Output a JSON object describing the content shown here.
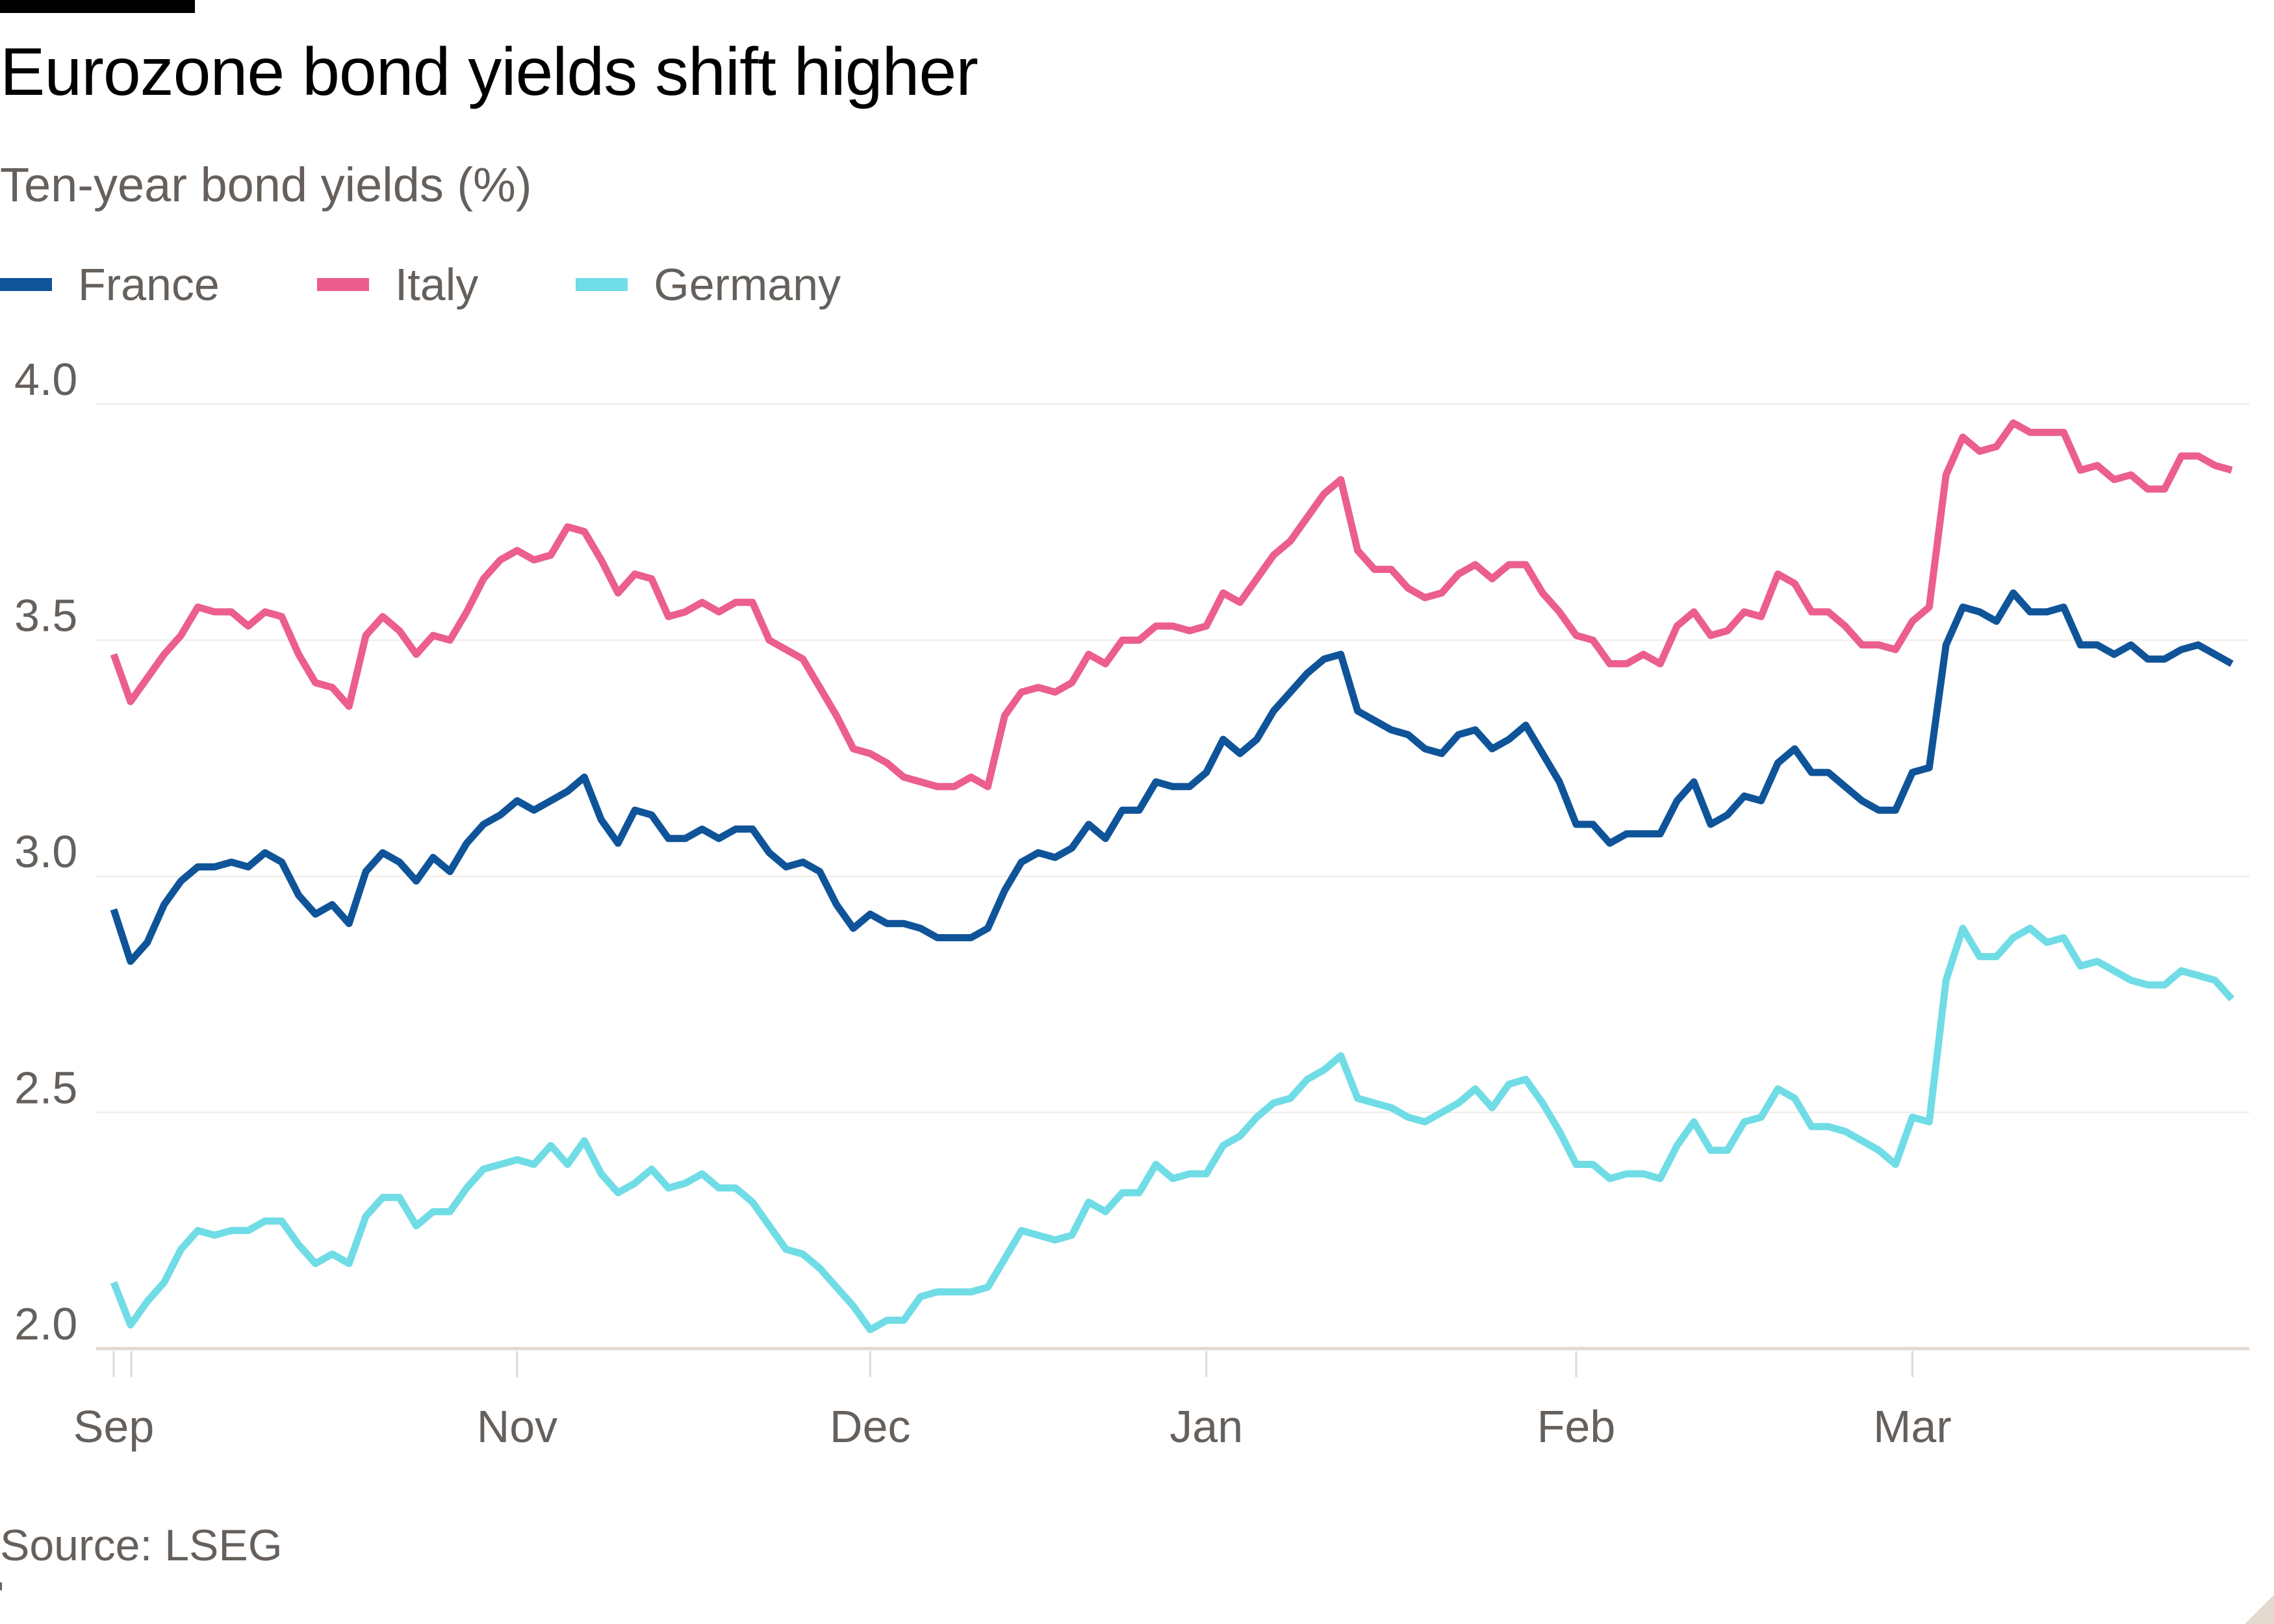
{
  "chart_data": {
    "type": "line",
    "title": "Eurozone bond yields shift higher",
    "subtitle": "Ten-year bond yields (%)",
    "source": "Source: LSEG",
    "ylim": [
      2.0,
      4.0
    ],
    "yticks": [
      "4.0",
      "3.5",
      "3.0",
      "2.5",
      "2.0"
    ],
    "grid": true,
    "legend_placement": "top-left",
    "xticks": [
      {
        "label": "Sep",
        "date": "2024-09-30"
      },
      {
        "label": "Nov",
        "date": "2024-11-01"
      },
      {
        "label": "Dec",
        "date": "2024-12-02"
      },
      {
        "label": "Jan",
        "date": "2025-01-02"
      },
      {
        "label": "Feb",
        "date": "2025-02-03"
      },
      {
        "label": "Mar",
        "date": "2025-03-03"
      }
    ],
    "x": [
      "2024-09-30",
      "2024-10-01",
      "2024-10-02",
      "2024-10-03",
      "2024-10-04",
      "2024-10-07",
      "2024-10-08",
      "2024-10-09",
      "2024-10-10",
      "2024-10-11",
      "2024-10-14",
      "2024-10-15",
      "2024-10-16",
      "2024-10-17",
      "2024-10-18",
      "2024-10-21",
      "2024-10-22",
      "2024-10-23",
      "2024-10-24",
      "2024-10-25",
      "2024-10-28",
      "2024-10-29",
      "2024-10-30",
      "2024-10-31",
      "2024-11-01",
      "2024-11-04",
      "2024-11-05",
      "2024-11-06",
      "2024-11-07",
      "2024-11-08",
      "2024-11-11",
      "2024-11-12",
      "2024-11-13",
      "2024-11-14",
      "2024-11-15",
      "2024-11-18",
      "2024-11-19",
      "2024-11-20",
      "2024-11-21",
      "2024-11-22",
      "2024-11-25",
      "2024-11-26",
      "2024-11-27",
      "2024-11-28",
      "2024-11-29",
      "2024-12-02",
      "2024-12-03",
      "2024-12-04",
      "2024-12-05",
      "2024-12-06",
      "2024-12-09",
      "2024-12-10",
      "2024-12-11",
      "2024-12-12",
      "2024-12-13",
      "2024-12-16",
      "2024-12-17",
      "2024-12-18",
      "2024-12-19",
      "2024-12-20",
      "2024-12-23",
      "2024-12-24",
      "2024-12-27",
      "2024-12-30",
      "2024-12-31",
      "2025-01-02",
      "2025-01-03",
      "2025-01-06",
      "2025-01-07",
      "2025-01-08",
      "2025-01-09",
      "2025-01-10",
      "2025-01-13",
      "2025-01-14",
      "2025-01-15",
      "2025-01-16",
      "2025-01-17",
      "2025-01-20",
      "2025-01-21",
      "2025-01-22",
      "2025-01-23",
      "2025-01-24",
      "2025-01-27",
      "2025-01-28",
      "2025-01-29",
      "2025-01-30",
      "2025-01-31",
      "2025-02-03",
      "2025-02-04",
      "2025-02-05",
      "2025-02-06",
      "2025-02-07",
      "2025-02-10",
      "2025-02-11",
      "2025-02-12",
      "2025-02-13",
      "2025-02-14",
      "2025-02-17",
      "2025-02-18",
      "2025-02-19",
      "2025-02-20",
      "2025-02-21",
      "2025-02-24",
      "2025-02-25",
      "2025-02-26",
      "2025-02-27",
      "2025-02-28",
      "2025-03-03",
      "2025-03-04",
      "2025-03-05",
      "2025-03-06",
      "2025-03-07",
      "2025-03-10",
      "2025-03-11",
      "2025-03-12",
      "2025-03-13",
      "2025-03-14",
      "2025-03-17",
      "2025-03-18",
      "2025-03-19",
      "2025-03-20",
      "2025-03-21",
      "2025-03-24",
      "2025-03-25",
      "2025-03-26",
      "2025-03-27",
      "2025-03-28"
    ],
    "series": [
      {
        "name": "France",
        "color": "#0f5499",
        "values": [
          2.93,
          2.82,
          2.86,
          2.94,
          2.99,
          3.02,
          3.02,
          3.03,
          3.02,
          3.05,
          3.03,
          2.96,
          2.92,
          2.94,
          2.9,
          3.01,
          3.05,
          3.03,
          2.99,
          3.04,
          3.01,
          3.07,
          3.11,
          3.13,
          3.16,
          3.14,
          3.16,
          3.18,
          3.21,
          3.12,
          3.07,
          3.14,
          3.13,
          3.08,
          3.08,
          3.1,
          3.08,
          3.1,
          3.1,
          3.05,
          3.02,
          3.03,
          3.01,
          2.94,
          2.89,
          2.92,
          2.9,
          2.9,
          2.89,
          2.87,
          2.87,
          2.87,
          2.89,
          2.97,
          3.03,
          3.05,
          3.04,
          3.06,
          3.11,
          3.08,
          3.14,
          3.14,
          3.2,
          3.19,
          3.19,
          3.22,
          3.29,
          3.26,
          3.29,
          3.35,
          3.39,
          3.43,
          3.46,
          3.47,
          3.35,
          3.33,
          3.31,
          3.3,
          3.27,
          3.26,
          3.3,
          3.31,
          3.27,
          3.29,
          3.32,
          3.26,
          3.2,
          3.11,
          3.11,
          3.07,
          3.09,
          3.09,
          3.09,
          3.16,
          3.2,
          3.11,
          3.13,
          3.17,
          3.16,
          3.24,
          3.27,
          3.22,
          3.22,
          3.19,
          3.16,
          3.14,
          3.14,
          3.22,
          3.23,
          3.49,
          3.57,
          3.56,
          3.54,
          3.6,
          3.56,
          3.56,
          3.57,
          3.49,
          3.49,
          3.47,
          3.49,
          3.46,
          3.46,
          3.48,
          3.49,
          3.47,
          3.45
        ]
      },
      {
        "name": "Italy",
        "color": "#eb5e8d",
        "values": [
          3.47,
          3.37,
          3.42,
          3.47,
          3.51,
          3.57,
          3.56,
          3.56,
          3.53,
          3.56,
          3.55,
          3.47,
          3.41,
          3.4,
          3.36,
          3.51,
          3.55,
          3.52,
          3.47,
          3.51,
          3.5,
          3.56,
          3.63,
          3.67,
          3.69,
          3.67,
          3.68,
          3.74,
          3.73,
          3.67,
          3.6,
          3.64,
          3.63,
          3.55,
          3.56,
          3.58,
          3.56,
          3.58,
          3.58,
          3.5,
          3.48,
          3.46,
          3.4,
          3.34,
          3.27,
          3.26,
          3.24,
          3.21,
          3.2,
          3.19,
          3.19,
          3.21,
          3.19,
          3.34,
          3.39,
          3.4,
          3.39,
          3.41,
          3.47,
          3.45,
          3.5,
          3.5,
          3.53,
          3.53,
          3.52,
          3.53,
          3.6,
          3.58,
          3.63,
          3.68,
          3.71,
          3.76,
          3.81,
          3.84,
          3.69,
          3.65,
          3.65,
          3.61,
          3.59,
          3.6,
          3.64,
          3.66,
          3.63,
          3.66,
          3.66,
          3.6,
          3.56,
          3.51,
          3.5,
          3.45,
          3.45,
          3.47,
          3.45,
          3.53,
          3.56,
          3.51,
          3.52,
          3.56,
          3.55,
          3.64,
          3.62,
          3.56,
          3.56,
          3.53,
          3.49,
          3.49,
          3.48,
          3.54,
          3.57,
          3.85,
          3.93,
          3.9,
          3.91,
          3.96,
          3.94,
          3.94,
          3.94,
          3.86,
          3.87,
          3.84,
          3.85,
          3.82,
          3.82,
          3.89,
          3.89,
          3.87,
          3.86
        ]
      },
      {
        "name": "Germany",
        "color": "#70dce6",
        "values": [
          2.14,
          2.05,
          2.1,
          2.14,
          2.21,
          2.25,
          2.24,
          2.25,
          2.25,
          2.27,
          2.27,
          2.22,
          2.18,
          2.2,
          2.18,
          2.28,
          2.32,
          2.32,
          2.26,
          2.29,
          2.29,
          2.34,
          2.38,
          2.39,
          2.4,
          2.39,
          2.43,
          2.39,
          2.44,
          2.37,
          2.33,
          2.35,
          2.38,
          2.34,
          2.35,
          2.37,
          2.34,
          2.34,
          2.31,
          2.26,
          2.21,
          2.2,
          2.17,
          2.13,
          2.09,
          2.04,
          2.06,
          2.06,
          2.11,
          2.12,
          2.12,
          2.12,
          2.13,
          2.19,
          2.25,
          2.24,
          2.23,
          2.24,
          2.31,
          2.29,
          2.33,
          2.33,
          2.39,
          2.36,
          2.37,
          2.37,
          2.43,
          2.45,
          2.49,
          2.52,
          2.53,
          2.57,
          2.59,
          2.62,
          2.53,
          2.52,
          2.51,
          2.49,
          2.48,
          2.5,
          2.52,
          2.55,
          2.51,
          2.56,
          2.57,
          2.52,
          2.46,
          2.39,
          2.39,
          2.36,
          2.37,
          2.37,
          2.36,
          2.43,
          2.48,
          2.42,
          2.42,
          2.48,
          2.49,
          2.55,
          2.53,
          2.47,
          2.47,
          2.46,
          2.44,
          2.42,
          2.39,
          2.49,
          2.48,
          2.78,
          2.89,
          2.83,
          2.83,
          2.87,
          2.89,
          2.86,
          2.87,
          2.81,
          2.82,
          2.8,
          2.78,
          2.77,
          2.77,
          2.8,
          2.79,
          2.78,
          2.74
        ]
      }
    ]
  }
}
